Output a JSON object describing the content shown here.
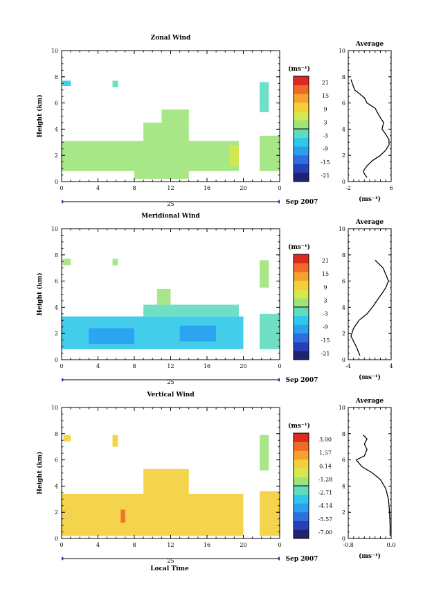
{
  "footer": {
    "xlabel": "Local Time"
  },
  "chart_data": [
    {
      "type": "heatmap",
      "title": "Zonal Wind",
      "ylabel": "Height (km)",
      "x_ticks": [
        "0",
        "4",
        "8",
        "12",
        "16",
        "20",
        "0"
      ],
      "y_ticks": [
        "0",
        "2",
        "4",
        "6",
        "8",
        "10"
      ],
      "date_label": "25",
      "month_label": "Sep 2007",
      "xlim": [
        0,
        24
      ],
      "ylim": [
        0,
        10
      ],
      "colorbar": {
        "unit": "(ms⁻¹)",
        "ticks": [
          "21",
          "15",
          "9",
          "3",
          "-3",
          "-9",
          "-15",
          "-21"
        ],
        "range": [
          -24,
          24
        ]
      },
      "regions": [
        {
          "x0": 0,
          "x1": 19.5,
          "y0": 0.8,
          "y1": 3.1,
          "value": 1.5
        },
        {
          "x0": 9,
          "x1": 14,
          "y0": 3.1,
          "y1": 4.5,
          "value": 3.5
        },
        {
          "x0": 11,
          "x1": 14,
          "y0": 4.5,
          "y1": 5.5,
          "value": 2
        },
        {
          "x0": 8,
          "x1": 14,
          "y0": 0.2,
          "y1": 0.8,
          "value": 0
        },
        {
          "x0": 18.5,
          "x1": 19.5,
          "y0": 1.2,
          "y1": 2.8,
          "value": 6
        },
        {
          "x0": 21.8,
          "x1": 24,
          "y0": 0.8,
          "y1": 3.5,
          "value": 2
        },
        {
          "x0": 21.8,
          "x1": 22.8,
          "y0": 5.3,
          "y1": 7.6,
          "value": -3
        },
        {
          "x0": 0.1,
          "x1": 1,
          "y0": 7.3,
          "y1": 7.7,
          "value": -5
        },
        {
          "x0": 5.6,
          "x1": 6.2,
          "y0": 7.2,
          "y1": 7.7,
          "value": -3
        }
      ],
      "profile": {
        "title": "Average",
        "xlabel": "(ms⁻¹)",
        "x_ticks": [
          "-2",
          "6"
        ],
        "y_ticks": [
          "0",
          "2",
          "4",
          "6",
          "8",
          "10"
        ],
        "xlim": [
          -2,
          6
        ],
        "ylim": [
          0,
          10
        ],
        "x": [
          1.5,
          1.0,
          0.8,
          1.5,
          2.5,
          4.0,
          5.0,
          5.6,
          5.6,
          5.0,
          4.3,
          4.6,
          3.8,
          3.0,
          1.5,
          1.0,
          -0.8,
          -1.5
        ],
        "y": [
          0.3,
          0.6,
          0.8,
          1.2,
          1.6,
          2.0,
          2.4,
          2.8,
          3.2,
          3.6,
          4.0,
          4.5,
          5.0,
          5.6,
          6.0,
          6.4,
          7.0,
          7.8
        ]
      }
    },
    {
      "type": "heatmap",
      "title": "Meridional Wind",
      "ylabel": "Height (km)",
      "x_ticks": [
        "0",
        "4",
        "8",
        "12",
        "16",
        "20",
        "0"
      ],
      "y_ticks": [
        "0",
        "2",
        "4",
        "6",
        "8",
        "10"
      ],
      "date_label": "25",
      "month_label": "Sep 2007",
      "xlim": [
        0,
        24
      ],
      "ylim": [
        0,
        10
      ],
      "colorbar": {
        "unit": "(ms⁻¹)",
        "ticks": [
          "21",
          "15",
          "9",
          "3",
          "-3",
          "-9",
          "-15",
          "-21"
        ],
        "range": [
          -24,
          24
        ]
      },
      "regions": [
        {
          "x0": 0,
          "x1": 20,
          "y0": 0.8,
          "y1": 3.3,
          "value": -7
        },
        {
          "x0": 3,
          "x1": 8,
          "y0": 1.2,
          "y1": 2.4,
          "value": -10
        },
        {
          "x0": 13,
          "x1": 17,
          "y0": 1.4,
          "y1": 2.6,
          "value": -11
        },
        {
          "x0": 9,
          "x1": 19.5,
          "y0": 3.3,
          "y1": 4.2,
          "value": -1
        },
        {
          "x0": 10.5,
          "x1": 12,
          "y0": 4.2,
          "y1": 5.4,
          "value": 2
        },
        {
          "x0": 21.8,
          "x1": 24,
          "y0": 0.8,
          "y1": 3.5,
          "value": -4
        },
        {
          "x0": 21.8,
          "x1": 22.8,
          "y0": 5.5,
          "y1": 7.6,
          "value": 0
        },
        {
          "x0": 0.1,
          "x1": 1,
          "y0": 7.2,
          "y1": 7.7,
          "value": 3
        },
        {
          "x0": 5.6,
          "x1": 6.2,
          "y0": 7.2,
          "y1": 7.7,
          "value": 2
        }
      ],
      "profile": {
        "title": "Average",
        "xlabel": "(ms⁻¹)",
        "x_ticks": [
          "-4",
          "4"
        ],
        "y_ticks": [
          "0",
          "2",
          "4",
          "6",
          "8",
          "10"
        ],
        "xlim": [
          -4,
          4
        ],
        "ylim": [
          0,
          10
        ],
        "x": [
          -1.8,
          -2.5,
          -3.5,
          -3.0,
          -2.0,
          -0.5,
          0.5,
          1.5,
          2.2,
          3.0,
          3.5,
          3.0,
          2.5,
          1.0
        ],
        "y": [
          0.3,
          1.0,
          1.8,
          2.4,
          3.0,
          3.5,
          4.0,
          4.6,
          5.0,
          5.5,
          6.0,
          6.5,
          7.0,
          7.6
        ]
      }
    },
    {
      "type": "heatmap",
      "title": "Vertical Wind",
      "ylabel": "Height (km)",
      "x_ticks": [
        "0",
        "4",
        "8",
        "12",
        "16",
        "20",
        "0"
      ],
      "y_ticks": [
        "0",
        "2",
        "4",
        "6",
        "8",
        "10"
      ],
      "date_label": "25",
      "month_label": "Sep 2007",
      "xlim": [
        0,
        24
      ],
      "ylim": [
        0,
        10
      ],
      "colorbar": {
        "unit": "(ms⁻¹)",
        "ticks": [
          "3.00",
          "1.57",
          "0.14",
          "-1.28",
          "-2.71",
          "-4.14",
          "-5.57",
          "-7.00"
        ],
        "range": [
          -7.7,
          3.7
        ]
      },
      "regions": [
        {
          "x0": 0,
          "x1": 20,
          "y0": 0.2,
          "y1": 3.4,
          "value": 0.6
        },
        {
          "x0": 9,
          "x1": 14,
          "y0": 3.4,
          "y1": 5.3,
          "value": 0.6
        },
        {
          "x0": 21.8,
          "x1": 24,
          "y0": 0.2,
          "y1": 3.6,
          "value": 0.6
        },
        {
          "x0": 21.8,
          "x1": 22.8,
          "y0": 5.2,
          "y1": 7.9,
          "value": -2.0
        },
        {
          "x0": 0.2,
          "x1": 1,
          "y0": 7.4,
          "y1": 7.9,
          "value": 0.3
        },
        {
          "x0": 5.6,
          "x1": 6.2,
          "y0": 7.0,
          "y1": 7.9,
          "value": 0.2
        },
        {
          "x0": 6.5,
          "x1": 7,
          "y0": 1.2,
          "y1": 2.2,
          "value": 1.8
        }
      ],
      "profile": {
        "title": "Average",
        "xlabel": "(ms⁻¹)",
        "x_ticks": [
          "-0.8",
          "0.0"
        ],
        "y_ticks": [
          "0",
          "2",
          "4",
          "6",
          "8",
          "10"
        ],
        "xlim": [
          -0.8,
          0.0
        ],
        "ylim": [
          0,
          10
        ],
        "x": [
          -0.02,
          -0.02,
          -0.03,
          -0.05,
          -0.1,
          -0.2,
          -0.35,
          -0.55,
          -0.65,
          -0.5,
          -0.45,
          -0.5,
          -0.45,
          -0.52
        ],
        "y": [
          0.2,
          1.0,
          2.0,
          3.0,
          3.8,
          4.5,
          5.0,
          5.5,
          6.0,
          6.3,
          6.8,
          7.2,
          7.6,
          7.9
        ]
      }
    }
  ]
}
